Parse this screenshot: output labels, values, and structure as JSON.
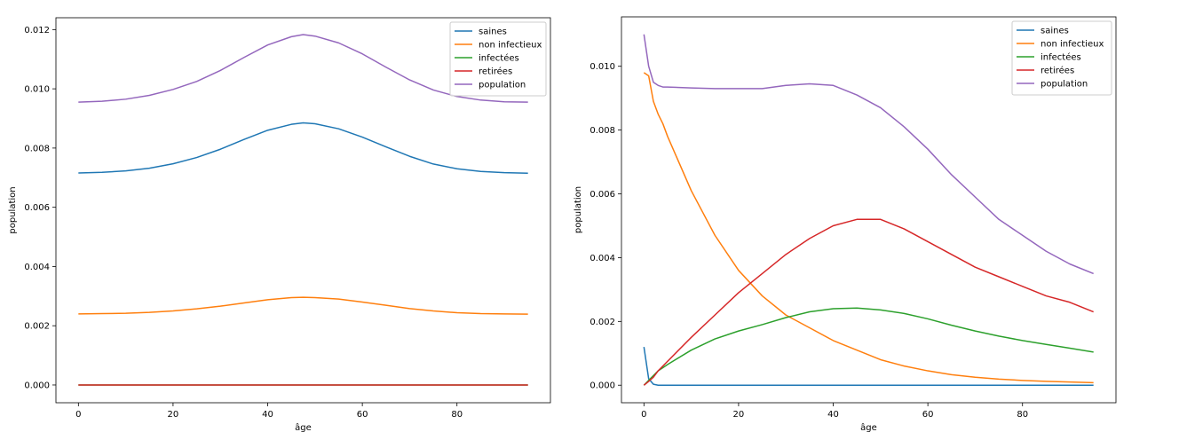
{
  "chart_data": [
    {
      "type": "line",
      "xlabel": "âge",
      "ylabel": "population",
      "xlim": [
        -4.75,
        99.75
      ],
      "ylim": [
        -0.0006,
        0.0124
      ],
      "xticks": [
        0,
        20,
        40,
        60,
        80
      ],
      "yticks": [
        0.0,
        0.002,
        0.004,
        0.006,
        0.008,
        0.01,
        0.012
      ],
      "ytick_labels": [
        "0.000",
        "0.002",
        "0.004",
        "0.006",
        "0.008",
        "0.010",
        "0.012"
      ],
      "legend_position": "top-right",
      "x": [
        0,
        5,
        10,
        15,
        20,
        25,
        30,
        35,
        40,
        45,
        47.5,
        50,
        55,
        60,
        65,
        70,
        75,
        80,
        85,
        90,
        95
      ],
      "series": [
        {
          "name": "saines",
          "color": "#1f77b4",
          "values": [
            0.00716,
            0.00718,
            0.00723,
            0.00732,
            0.00747,
            0.00768,
            0.00796,
            0.00829,
            0.0086,
            0.0088,
            0.00885,
            0.00882,
            0.00865,
            0.00837,
            0.00804,
            0.00772,
            0.00746,
            0.0073,
            0.00721,
            0.00717,
            0.00715
          ]
        },
        {
          "name": "non infectieux",
          "color": "#ff7f0e",
          "values": [
            0.0024,
            0.00241,
            0.00242,
            0.00245,
            0.0025,
            0.00257,
            0.00266,
            0.00277,
            0.00288,
            0.00295,
            0.00296,
            0.00295,
            0.0029,
            0.0028,
            0.00269,
            0.00258,
            0.0025,
            0.00244,
            0.00241,
            0.0024,
            0.00239
          ]
        },
        {
          "name": "infectées",
          "color": "#2ca02c",
          "values": [
            0.0,
            0.0,
            0.0,
            0.0,
            0.0,
            0.0,
            0.0,
            0.0,
            0.0,
            0.0,
            0.0,
            0.0,
            0.0,
            0.0,
            0.0,
            0.0,
            0.0,
            0.0,
            0.0,
            0.0,
            0.0
          ]
        },
        {
          "name": "retirées",
          "color": "#d62728",
          "values": [
            0.0,
            0.0,
            0.0,
            0.0,
            0.0,
            0.0,
            0.0,
            0.0,
            0.0,
            0.0,
            0.0,
            0.0,
            0.0,
            0.0,
            0.0,
            0.0,
            0.0,
            0.0,
            0.0,
            0.0,
            0.0
          ]
        },
        {
          "name": "population",
          "color": "#9467bd",
          "values": [
            0.00955,
            0.00958,
            0.00965,
            0.00978,
            0.00998,
            0.01025,
            0.01062,
            0.01106,
            0.01148,
            0.01176,
            0.01183,
            0.01178,
            0.01155,
            0.01118,
            0.01073,
            0.0103,
            0.00996,
            0.00974,
            0.00962,
            0.00956,
            0.00955
          ]
        }
      ]
    },
    {
      "type": "line",
      "xlabel": "âge",
      "ylabel": "population",
      "xlim": [
        -4.75,
        99.75
      ],
      "ylim": [
        -0.00055,
        0.01155
      ],
      "xticks": [
        0,
        20,
        40,
        60,
        80
      ],
      "yticks": [
        0.0,
        0.002,
        0.004,
        0.006,
        0.008,
        0.01
      ],
      "ytick_labels": [
        "0.000",
        "0.002",
        "0.004",
        "0.006",
        "0.008",
        "0.010"
      ],
      "legend_position": "top-right",
      "x": [
        0,
        1,
        2,
        3,
        4,
        5,
        10,
        15,
        20,
        25,
        30,
        35,
        40,
        45,
        50,
        55,
        60,
        65,
        70,
        75,
        80,
        85,
        90,
        95
      ],
      "series": [
        {
          "name": "saines",
          "color": "#1f77b4",
          "values": [
            0.0012,
            0.0002,
            3e-05,
            0.0,
            0.0,
            0.0,
            0.0,
            0.0,
            0.0,
            0.0,
            0.0,
            0.0,
            0.0,
            0.0,
            0.0,
            0.0,
            0.0,
            0.0,
            0.0,
            0.0,
            0.0,
            0.0,
            0.0,
            0.0
          ]
        },
        {
          "name": "non infectieux",
          "color": "#ff7f0e",
          "values": [
            0.0098,
            0.0097,
            0.0089,
            0.0085,
            0.0082,
            0.0078,
            0.0061,
            0.0047,
            0.0036,
            0.0028,
            0.0022,
            0.0018,
            0.0014,
            0.0011,
            0.0008,
            0.0006,
            0.00045,
            0.00033,
            0.00025,
            0.00019,
            0.00015,
            0.00012,
            0.0001,
            8e-05
          ]
        },
        {
          "name": "infectées",
          "color": "#2ca02c",
          "values": [
            0.0,
            0.00015,
            0.0003,
            0.00045,
            0.00055,
            0.00065,
            0.0011,
            0.00145,
            0.0017,
            0.0019,
            0.00212,
            0.0023,
            0.0024,
            0.00242,
            0.00236,
            0.00225,
            0.00208,
            0.00188,
            0.0017,
            0.00154,
            0.0014,
            0.00128,
            0.00116,
            0.00104
          ]
        },
        {
          "name": "retirées",
          "color": "#d62728",
          "values": [
            0.0,
            0.00012,
            0.00025,
            0.00045,
            0.0006,
            0.00075,
            0.0015,
            0.0022,
            0.0029,
            0.0035,
            0.0041,
            0.0046,
            0.005,
            0.0052,
            0.0052,
            0.0049,
            0.0045,
            0.0041,
            0.0037,
            0.0034,
            0.0031,
            0.0028,
            0.0026,
            0.0023
          ]
        },
        {
          "name": "population",
          "color": "#9467bd",
          "values": [
            0.011,
            0.01,
            0.0095,
            0.0094,
            0.00935,
            0.00935,
            0.00932,
            0.0093,
            0.0093,
            0.0093,
            0.0094,
            0.00945,
            0.0094,
            0.0091,
            0.0087,
            0.0081,
            0.0074,
            0.0066,
            0.0059,
            0.0052,
            0.0047,
            0.0042,
            0.0038,
            0.0035
          ]
        }
      ]
    }
  ]
}
